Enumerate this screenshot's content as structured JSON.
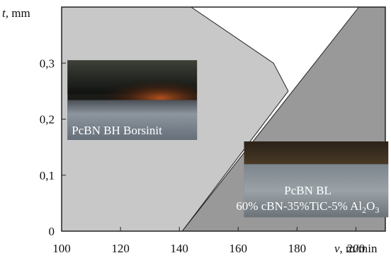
{
  "chart_data": {
    "type": "area",
    "xlabel_var": "v",
    "xlabel_unit": ", m/min",
    "ylabel_var": "t",
    "ylabel_unit": ", mm",
    "xlim": [
      100,
      210
    ],
    "ylim": [
      0,
      0.4
    ],
    "x_ticks": [
      100,
      120,
      140,
      160,
      180,
      200
    ],
    "x_tick_labels": [
      "100",
      "120",
      "140",
      "160",
      "180",
      "200"
    ],
    "y_ticks": [
      0,
      0.1,
      0.2,
      0.3
    ],
    "y_tick_labels": [
      "0",
      "0,1",
      "0,2",
      "0,3"
    ],
    "grid": false,
    "regions": [
      {
        "label": "PcBN BH Borsinit",
        "color": "#c8c8c8",
        "boundary": [
          [
            100,
            0
          ],
          [
            141,
            0
          ],
          [
            177,
            0.25
          ],
          [
            172,
            0.3
          ],
          [
            144,
            0.4
          ],
          [
            100,
            0.4
          ]
        ]
      },
      {
        "label_line1": "PcBN BL",
        "label_line2": "60% cBN-35%TiC-5% Al",
        "label_sub_2": "2",
        "label_o": "O",
        "label_sub_3": "3",
        "color": "#999999",
        "boundary": [
          [
            141,
            0
          ],
          [
            210,
            0
          ],
          [
            210,
            0.4
          ],
          [
            201,
            0.4
          ]
        ]
      }
    ],
    "photo_1_value_box": {
      "x": [
        102,
        146
      ],
      "y": [
        0.163,
        0.305
      ]
    },
    "photo_2_value_box": {
      "x": [
        162,
        211
      ],
      "y": [
        0.025,
        0.16
      ]
    }
  }
}
